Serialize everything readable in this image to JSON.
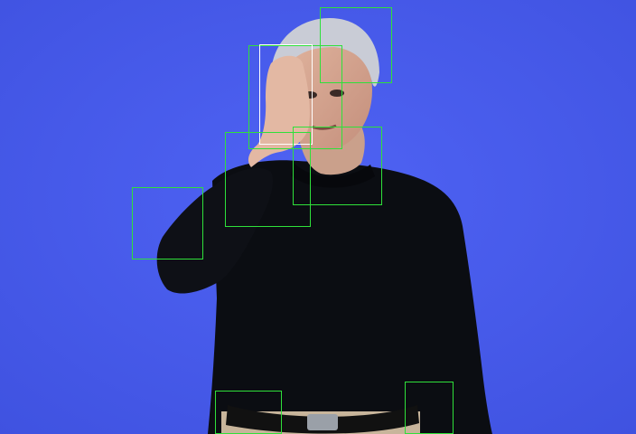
{
  "scene": {
    "background_color": "#4a5df0",
    "shirt_color": "#0b0d12",
    "skin_color": "#d7a994",
    "hair_color": "#c9ccd6",
    "trousers_color": "#c8b59b",
    "belt_color": "#111111"
  },
  "annotations": {
    "box_color": "#2fe03a",
    "highlight_color": "#ffffff",
    "boxes": [
      {
        "id": "top-right-head"
      },
      {
        "id": "face-region"
      },
      {
        "id": "raised-hand",
        "highlight": true
      },
      {
        "id": "hand-wrist"
      },
      {
        "id": "neck-collar"
      },
      {
        "id": "left-elbow"
      },
      {
        "id": "left-hip"
      },
      {
        "id": "right-hip"
      }
    ]
  }
}
